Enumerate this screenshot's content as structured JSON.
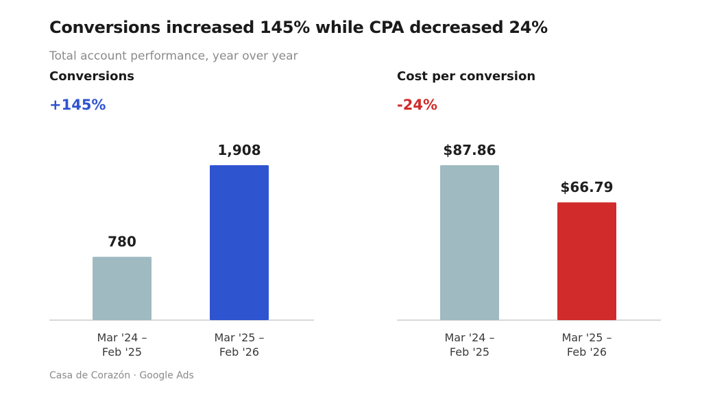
{
  "header": {
    "title": "Conversions increased 145% while CPA decreased 24%",
    "subtitle": "Total account performance, year over year"
  },
  "footer": {
    "source": "Casa de Corazón · Google Ads"
  },
  "colors": {
    "baseline_bar": "#9fbac1",
    "conversions_accent": "#2f54d0",
    "cpa_accent": "#d12b2b",
    "axis": "#cccccc"
  },
  "chart_data": [
    {
      "type": "bar",
      "title": "Conversions",
      "change": "+145%",
      "categories": [
        [
          "Mar '24 –",
          "Feb '25"
        ],
        [
          "Mar '25 –",
          "Feb '26"
        ]
      ],
      "values": [
        780,
        1908
      ],
      "data_labels": [
        "780",
        "1,908"
      ],
      "bar_colors": [
        "#9fbac1",
        "#2f54d0"
      ],
      "change_color": "#2f54d0",
      "ylim": [
        0,
        1908
      ]
    },
    {
      "type": "bar",
      "title": "Cost per conversion",
      "change": "-24%",
      "categories": [
        [
          "Mar '24 –",
          "Feb '25"
        ],
        [
          "Mar '25 –",
          "Feb '26"
        ]
      ],
      "values": [
        87.86,
        66.79
      ],
      "data_labels": [
        "$87.86",
        "$66.79"
      ],
      "bar_colors": [
        "#9fbac1",
        "#d12b2b"
      ],
      "change_color": "#d12b2b",
      "ylim": [
        0,
        87.86
      ]
    }
  ]
}
